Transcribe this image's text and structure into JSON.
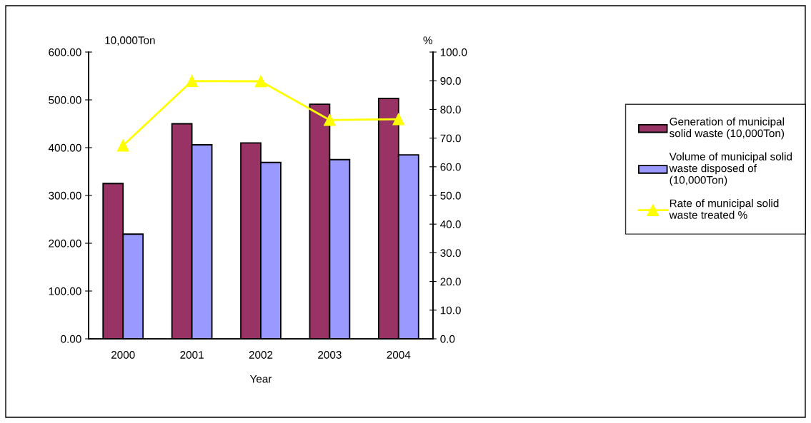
{
  "chart_data": {
    "type": "bar",
    "xlabel": "Year",
    "ylabel": "10,000Ton",
    "y2label": "%",
    "categories": [
      "2000",
      "2001",
      "2002",
      "2003",
      "2004"
    ],
    "series": [
      {
        "name": "Generation of municipal\nsolid waste (10,000Ton)",
        "color": "#993366",
        "values": [
          325,
          450,
          410,
          491,
          503
        ]
      },
      {
        "name": "Volume of municipal solid\nwaste disposed of\n(10,000Ton)",
        "color": "#9999ff",
        "values": [
          219,
          406,
          369,
          375,
          385
        ]
      },
      {
        "name": "Rate of municipal solid\nwaste treated %",
        "color": "#ffff00",
        "type": "line",
        "axis": "y2",
        "marker": "triangle",
        "values": [
          67.4,
          89.9,
          89.8,
          76.3,
          76.6
        ]
      }
    ],
    "ylim": [
      0,
      600
    ],
    "yticks": [
      {
        "value": 0,
        "label": "0.00"
      },
      {
        "value": 100,
        "label": "100.00"
      },
      {
        "value": 200,
        "label": "200.00"
      },
      {
        "value": 300,
        "label": "300.00"
      },
      {
        "value": 400,
        "label": "400.00"
      },
      {
        "value": 500,
        "label": "500.00"
      },
      {
        "value": 600,
        "label": "600.00"
      }
    ],
    "y2lim": [
      0,
      100
    ],
    "y2ticks": [
      {
        "value": 0,
        "label": "0.0"
      },
      {
        "value": 10,
        "label": "10.0"
      },
      {
        "value": 20,
        "label": "20.0"
      },
      {
        "value": 30,
        "label": "30.0"
      },
      {
        "value": 40,
        "label": "40.0"
      },
      {
        "value": 50,
        "label": "50.0"
      },
      {
        "value": 60,
        "label": "60.0"
      },
      {
        "value": 70,
        "label": "70.0"
      },
      {
        "value": 80,
        "label": "80.0"
      },
      {
        "value": 90,
        "label": "90.0"
      },
      {
        "value": 100,
        "label": "100.0"
      }
    ],
    "grid": false,
    "legend": "right"
  }
}
